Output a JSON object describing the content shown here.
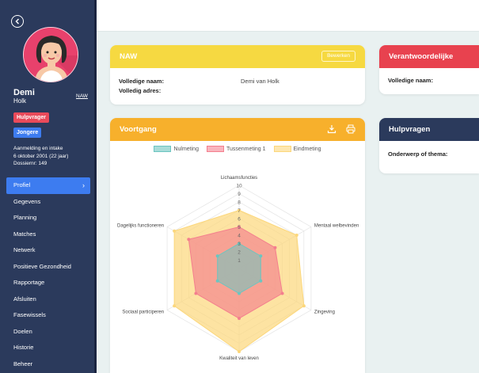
{
  "profile": {
    "first_name": "Demi",
    "last_name": "Holk",
    "naw_link": "NAW",
    "badges": [
      "Hulpvrager",
      "Jongere"
    ],
    "intake_line1": "Aanmelding en intake",
    "intake_line2": "6 oktober 2001 (22 jaar)",
    "intake_line3": "Dossiernr: 149"
  },
  "nav": {
    "items": [
      {
        "label": "Profiel"
      },
      {
        "label": "Gegevens"
      },
      {
        "label": "Planning"
      },
      {
        "label": "Matches"
      },
      {
        "label": "Netwerk"
      },
      {
        "label": "Positieve Gezondheid"
      },
      {
        "label": "Rapportage"
      },
      {
        "label": "Afsluiten"
      },
      {
        "label": "Fasewissels"
      },
      {
        "label": "Doelen"
      },
      {
        "label": "Historie"
      },
      {
        "label": "Beheer"
      }
    ],
    "active_index": 0
  },
  "naw_card": {
    "title": "NAW",
    "edit_label": "Bewerken",
    "full_name_label": "Volledige naam:",
    "full_name_value": "Demi van Holk",
    "address_label": "Volledig adres:"
  },
  "verant_card": {
    "title": "Verantwoordelijke",
    "full_name_label": "Volledige naam:"
  },
  "voortgang_card": {
    "title": "Voortgang",
    "download_icon": "download-icon",
    "print_icon": "printer-icon"
  },
  "hulp_card": {
    "title": "Hulpvragen",
    "topic_label": "Onderwerp of thema:"
  },
  "colors": {
    "sidebar": "#2b3a5c",
    "accent_blue": "#3d7cf0",
    "naw_yellow": "#f6d941",
    "voortgang_orange": "#f7b02c",
    "red": "#e8424f"
  },
  "chart_data": {
    "type": "radar",
    "categories": [
      "Lichaamsfuncties",
      "Mentaal welbevinden",
      "Zingeving",
      "Kwaliteit van leven",
      "Sociaal participeren",
      "Dagelijks functioneren"
    ],
    "rticks": [
      "0",
      "1",
      "2",
      "3",
      "4",
      "5",
      "6",
      "7",
      "8",
      "9",
      "10"
    ],
    "rlim": [
      0,
      10
    ],
    "legend_position": "top",
    "series": [
      {
        "name": "Nulmeting",
        "color": "#6cc5c0",
        "values": [
          3,
          3,
          3,
          3,
          3,
          3
        ]
      },
      {
        "name": "Tussenmeting 1",
        "color": "#f47f8e",
        "values": [
          5,
          5,
          6,
          6,
          6,
          7
        ]
      },
      {
        "name": "Eindmeting",
        "color": "#fcd77b",
        "values": [
          7,
          8,
          9,
          10,
          9,
          9
        ]
      }
    ]
  }
}
